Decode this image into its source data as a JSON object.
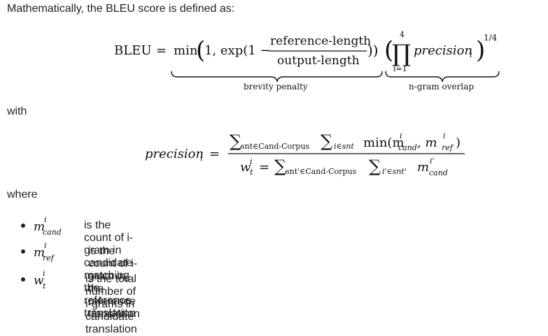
{
  "intro_text": "Mathematically, the BLEU score is defined as:",
  "bleu_formula": {
    "lhs": "BLEU",
    "eq": "=",
    "min": "min",
    "one_comma": "1, exp(1 −",
    "numerator": "reference-length",
    "denominator": "output-length",
    "close_paren": "))",
    "prod_upper": "4",
    "prod_lower": "i=1",
    "prod_symbol": "∏",
    "precision": "precision",
    "precision_sub": "i",
    "exponent": "1/4",
    "brace_left_label": "brevity penalty",
    "brace_right_label": "n-gram overlap"
  },
  "with_text": "with",
  "precision_formula": {
    "lhs": "precision",
    "lhs_sub": "i",
    "eq": "=",
    "num_sum1": "∑",
    "num_sum1_sub": "snt∈Cand-Corpus",
    "num_sum2": "∑",
    "num_sum2_sub": "i∈snt",
    "num_min": "min(m",
    "num_cand_sup": "i",
    "num_cand_sub": "cand",
    "num_comma": ", m",
    "num_ref_sup": "i",
    "num_ref_sub": "ref",
    "num_close": ")",
    "den_w": "w",
    "den_w_sup": "i",
    "den_w_sub": "t",
    "den_eq": "=",
    "den_sum1": "∑",
    "den_sum1_sub": "snt'∈Cand-Corpus",
    "den_sum2": "∑",
    "den_sum2_sub": "i'∈snt'",
    "den_m": "m",
    "den_m_sup": "i'",
    "den_m_sub": "cand"
  },
  "where_text": "where",
  "definitions": [
    {
      "symbol": "m",
      "sup": "i",
      "sub": "cand",
      "description": "is the count of i-gram in candidate matching the reference translation"
    },
    {
      "symbol": "m",
      "sup": "i",
      "sub": "ref",
      "description": "is the count of i-gram in the reference translation"
    },
    {
      "symbol": "w",
      "sup": "i",
      "sub": "t",
      "description": "is the total number of i-grams in candidate translation"
    }
  ]
}
